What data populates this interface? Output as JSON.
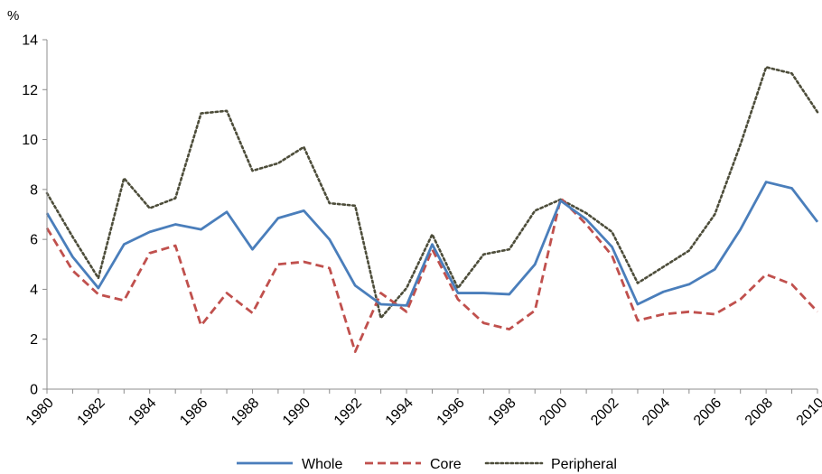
{
  "chart_data": {
    "type": "line",
    "title": "",
    "xlabel": "",
    "ylabel": "%",
    "ylim": [
      0,
      14
    ],
    "yticks": [
      0,
      2,
      4,
      6,
      8,
      10,
      12,
      14
    ],
    "xlim": [
      1980,
      2010
    ],
    "xticks": [
      "1980",
      "1982",
      "1984",
      "1986",
      "1988",
      "1990",
      "1992",
      "1994",
      "1996",
      "1998",
      "2000",
      "2002",
      "2004",
      "2006",
      "2008",
      "2010"
    ],
    "grid": false,
    "legend_position": "bottom",
    "x": [
      1980,
      1981,
      1982,
      1983,
      1984,
      1985,
      1986,
      1987,
      1988,
      1989,
      1990,
      1991,
      1992,
      1993,
      1994,
      1995,
      1996,
      1997,
      1998,
      1999,
      2000,
      2001,
      2002,
      2003,
      2004,
      2005,
      2006,
      2007,
      2008,
      2009,
      2010
    ],
    "series": [
      {
        "name": "Whole",
        "color": "#4A7EBB",
        "style": "solid",
        "values": [
          7.05,
          5.3,
          4.05,
          5.8,
          6.3,
          6.6,
          6.4,
          7.1,
          5.6,
          6.85,
          7.15,
          6.0,
          4.15,
          3.4,
          3.35,
          5.8,
          3.85,
          3.85,
          3.8,
          5.0,
          7.55,
          6.8,
          5.7,
          3.4,
          3.9,
          4.2,
          4.8,
          6.4,
          8.3,
          8.05,
          6.7
        ]
      },
      {
        "name": "Core",
        "color": "#C0504D",
        "style": "dashed",
        "values": [
          6.45,
          4.75,
          3.8,
          3.55,
          5.45,
          5.75,
          2.55,
          3.85,
          3.05,
          5.0,
          5.1,
          4.85,
          1.5,
          3.85,
          3.1,
          5.6,
          3.6,
          2.65,
          2.4,
          3.15,
          7.65,
          6.6,
          5.35,
          2.75,
          3.0,
          3.1,
          3.0,
          3.6,
          4.6,
          4.2,
          3.1
        ]
      },
      {
        "name": "Peripheral",
        "color": "#4D4D3A",
        "style": "dotted",
        "values": [
          7.85,
          6.1,
          4.45,
          8.45,
          7.25,
          7.65,
          11.05,
          11.15,
          8.75,
          9.05,
          9.7,
          7.45,
          7.35,
          2.85,
          4.05,
          6.2,
          4.05,
          5.4,
          5.6,
          7.15,
          7.6,
          7.05,
          6.3,
          4.25,
          4.9,
          5.55,
          7.0,
          9.8,
          12.9,
          12.65,
          11.1
        ]
      }
    ]
  }
}
